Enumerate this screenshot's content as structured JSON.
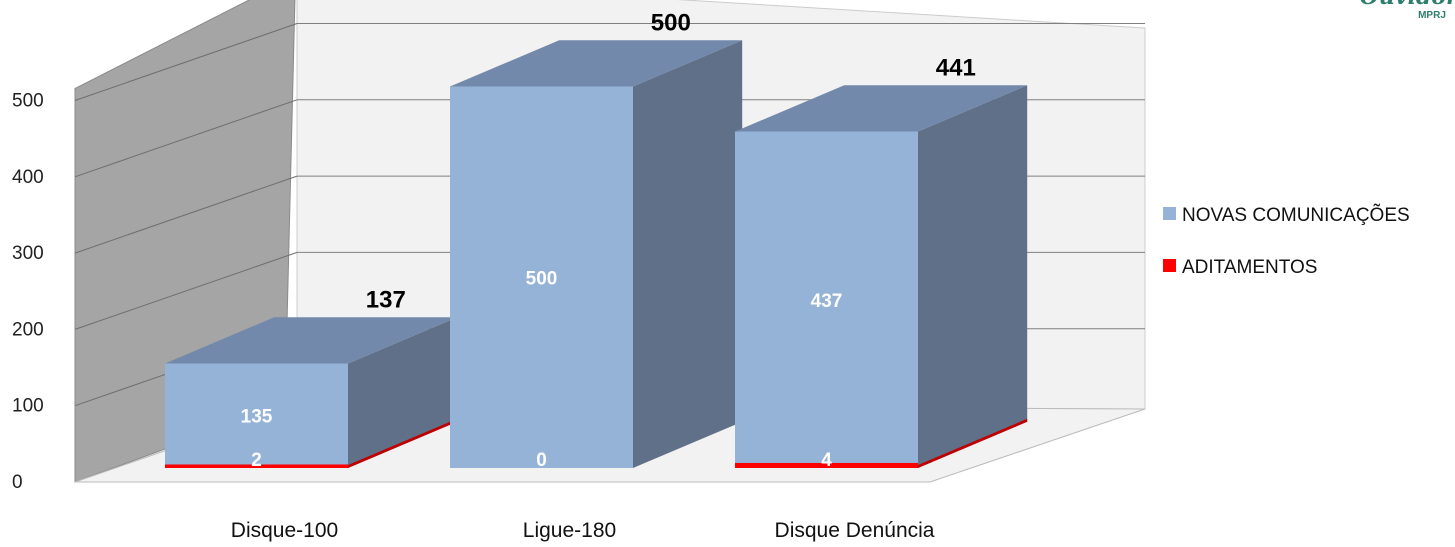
{
  "logo": {
    "brand": "Ouvidoria",
    "sub": "MPRJ"
  },
  "colors": {
    "novas_front": "#95b3d7",
    "novas_top": "#7289ab",
    "novas_side": "#5f7088",
    "aditamentos": "#ff0000",
    "aditamentos_dark": "#c00000",
    "wall_side": "#a5a5a5",
    "wall_back": "#f2f2f2",
    "floor": "#f2f2f2"
  },
  "chart_data": {
    "type": "bar",
    "stacked": true,
    "three_d": true,
    "categories": [
      "Disque-100",
      "Ligue-180",
      "Disque Denúncia"
    ],
    "series": [
      {
        "name": "ADITAMENTOS",
        "values": [
          2,
          0,
          4
        ],
        "color": "#ff0000"
      },
      {
        "name": "NOVAS COMUNICAÇÕES",
        "values": [
          135,
          500,
          437
        ],
        "color": "#95b3d7"
      }
    ],
    "totals": [
      137,
      500,
      441
    ],
    "ylim": [
      0,
      500
    ],
    "yticks": [
      0,
      100,
      200,
      300,
      400,
      500
    ],
    "grid": true,
    "legend_position": "right",
    "legend": [
      "NOVAS COMUNICAÇÕES",
      "ADITAMENTOS"
    ]
  }
}
